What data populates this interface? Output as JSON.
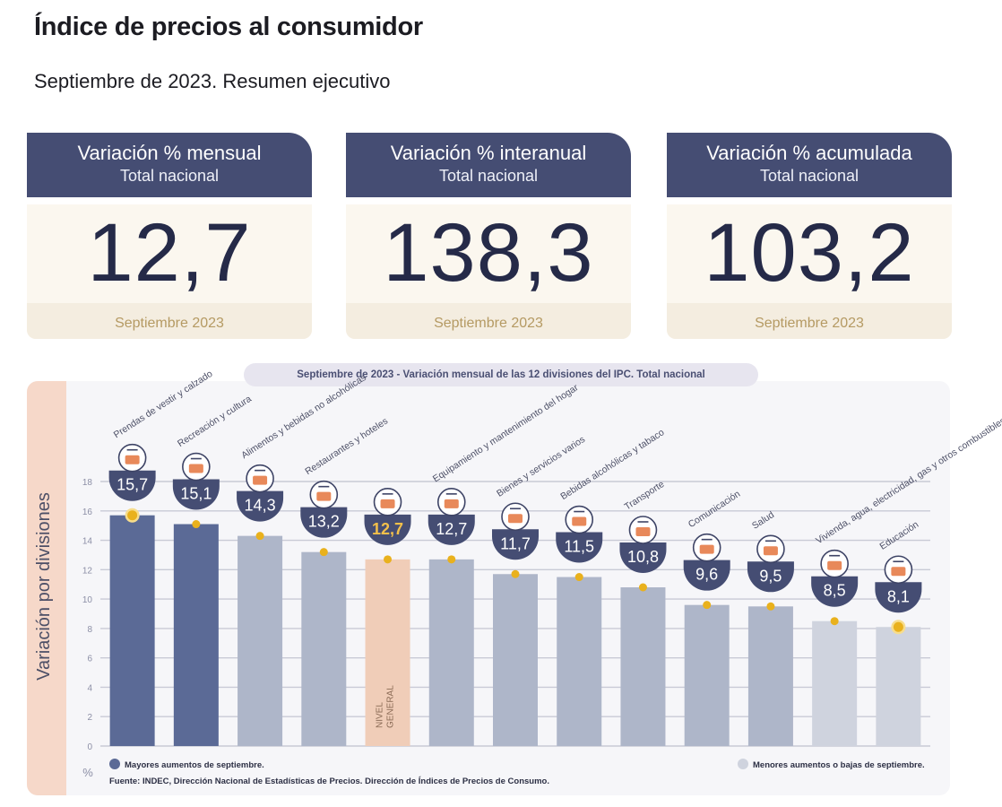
{
  "header": {
    "title": "Índice de precios al consumidor",
    "subtitle": "Septiembre de 2023. Resumen ejecutivo"
  },
  "cards": [
    {
      "label": "Variación % mensual",
      "scope": "Total nacional",
      "value": "12,7",
      "period": "Septiembre 2023"
    },
    {
      "label": "Variación % interanual",
      "scope": "Total nacional",
      "value": "138,3",
      "period": "Septiembre 2023"
    },
    {
      "label": "Variación % acumulada",
      "scope": "Total nacional",
      "value": "103,2",
      "period": "Septiembre 2023"
    }
  ],
  "colors": {
    "header_bg": "#454d73",
    "bar_dark": "#5b6a96",
    "bar_medium": "#aeb6c9",
    "bar_light": "#cfd3de",
    "bar_general": "#f0cdb8",
    "marker": "#e9b11d",
    "badge": "#454d73",
    "icon_accent": "#e8895a"
  },
  "chart_data": {
    "type": "bar",
    "title": "Septiembre de 2023 - Variación mensual de las 12 divisiones del IPC. Total nacional",
    "ylabel": "Variación por divisiones",
    "yunit": "%",
    "ylim": [
      0,
      18
    ],
    "yticks": [
      0,
      2,
      4,
      6,
      8,
      10,
      12,
      14,
      16,
      18
    ],
    "categories": [
      "Prendas de vestir y calzado",
      "Recreación y cultura",
      "Alimentos y bebidas no alcohólicas",
      "Restaurantes y hoteles",
      "NIVEL GENERAL",
      "Equipamiento y mantenimiento del hogar",
      "Bienes y servicios varios",
      "Bebidas alcohólicas y tabaco",
      "Transporte",
      "Comunicación",
      "Salud",
      "Vivienda, agua, electricidad, gas y otros combustibles",
      "Educación"
    ],
    "values": [
      15.7,
      15.1,
      14.3,
      13.2,
      12.7,
      12.7,
      11.7,
      11.5,
      10.8,
      9.6,
      9.5,
      8.5,
      8.1
    ],
    "value_labels": [
      "15,7",
      "15,1",
      "14,3",
      "13,2",
      "12,7",
      "12,7",
      "11,7",
      "11,5",
      "10,8",
      "9,6",
      "9,5",
      "8,5",
      "8,1"
    ],
    "groups": [
      "mayor",
      "mayor",
      "medio",
      "medio",
      "general",
      "medio",
      "medio",
      "medio",
      "medio",
      "medio",
      "medio",
      "menor",
      "menor"
    ],
    "general_bar_label": [
      "NIVEL",
      "GENERAL"
    ],
    "legend": [
      {
        "key": "mayor",
        "label": "Mayores aumentos de septiembre."
      },
      {
        "key": "menor",
        "label": "Menores aumentos o bajas de septiembre."
      }
    ],
    "source": "Fuente: INDEC, Dirección Nacional de Estadísticas de Precios. Dirección de Índices de Precios de Consumo."
  }
}
